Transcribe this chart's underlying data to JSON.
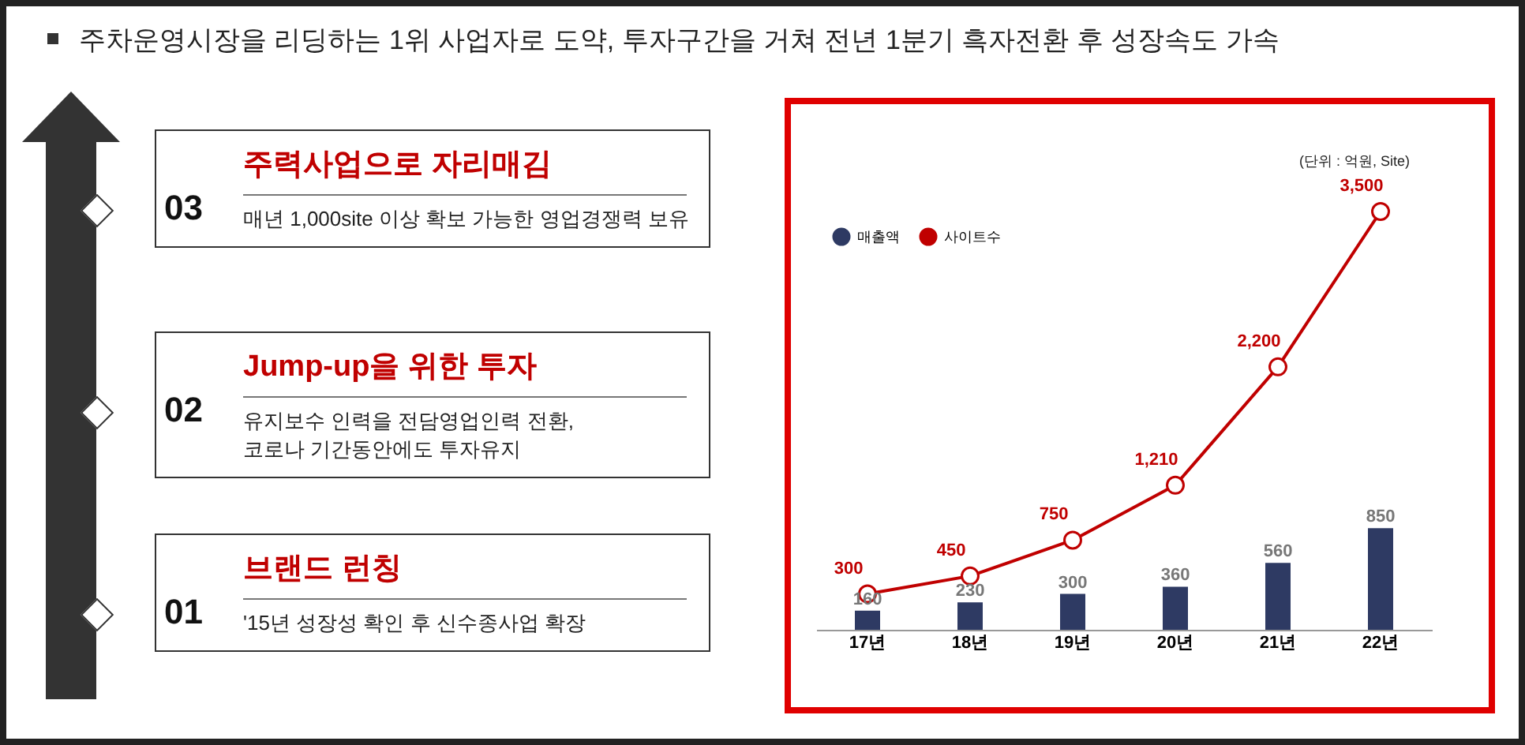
{
  "chart_data": [
    {
      "type": "other",
      "title": "주차운영시장을 리딩하는 1위 사업자로 도약, 투자구간을 거쳐 전년 1분기 흑자전환 후 성장속도 가속",
      "annotations": [
        "03",
        "주력사업으로 자리매김",
        "매년 1,000site 이상 확보 가능한 영업경쟁력 보유",
        "02",
        "Jump-up을 위한 투자",
        "유지보수 인력을 전담영업인력 전환,\n코로나 기간동안에도 투자유지",
        "01",
        "브랜드 런칭",
        "'15년 성장성 확인 후 신수종사업 확장"
      ]
    },
    {
      "type": "bar",
      "categories": [
        "17년",
        "18년",
        "19년",
        "20년",
        "21년",
        "22년"
      ],
      "series": [
        {
          "name": "매출액",
          "color": "#2e3a63",
          "values": [
            160,
            230,
            300,
            360,
            560,
            850
          ],
          "value_labels": [
            "160",
            "230",
            "300",
            "360",
            "560",
            "850"
          ]
        },
        {
          "name": "사이트수",
          "type": "line",
          "color": "#c00000",
          "values": [
            300,
            450,
            750,
            1210,
            2200,
            3500
          ],
          "value_labels": [
            "300",
            "450",
            "750",
            "1,210",
            "2,200",
            "3,500"
          ]
        }
      ],
      "legend": "top left",
      "marker": "circle",
      "annotations": [
        "(단위 : 억원, Site)"
      ]
    }
  ]
}
